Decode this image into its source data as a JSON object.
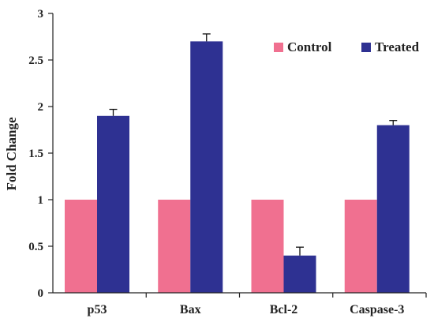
{
  "chart_data": {
    "type": "bar",
    "title": "",
    "xlabel": "",
    "ylabel": "Fold Change",
    "ylim": [
      0,
      3
    ],
    "yticks": [
      "0",
      "0.5",
      "1",
      "1.5",
      "2",
      "2.5",
      "3"
    ],
    "categories": [
      "p53",
      "Bax",
      "Bcl-2",
      "Caspase-3"
    ],
    "series": [
      {
        "name": "Control",
        "values": [
          1,
          1,
          1,
          1
        ],
        "errors": [
          0,
          0,
          0,
          0
        ],
        "color": "#F07090"
      },
      {
        "name": "Treated",
        "values": [
          1.9,
          2.7,
          0.4,
          1.8
        ],
        "errors": [
          0.07,
          0.08,
          0.09,
          0.05
        ],
        "color": "#2E3192"
      }
    ],
    "grid": false,
    "legend_position": "top-right"
  }
}
